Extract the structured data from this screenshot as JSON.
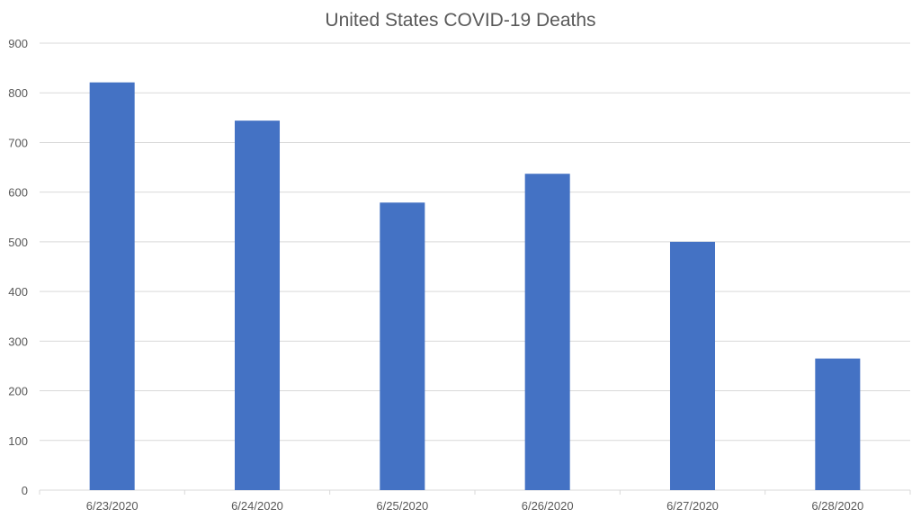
{
  "chart_data": {
    "type": "bar",
    "title": "United States COVID-19 Deaths",
    "xlabel": "",
    "ylabel": "",
    "categories": [
      "6/23/2020",
      "6/24/2020",
      "6/25/2020",
      "6/26/2020",
      "6/27/2020",
      "6/28/2020"
    ],
    "values": [
      821,
      744,
      579,
      637,
      500,
      265
    ],
    "ylim": [
      0,
      900
    ],
    "yticks": [
      0,
      100,
      200,
      300,
      400,
      500,
      600,
      700,
      800,
      900
    ],
    "grid": true,
    "legend": "none",
    "bar_color": "#4472c4"
  }
}
